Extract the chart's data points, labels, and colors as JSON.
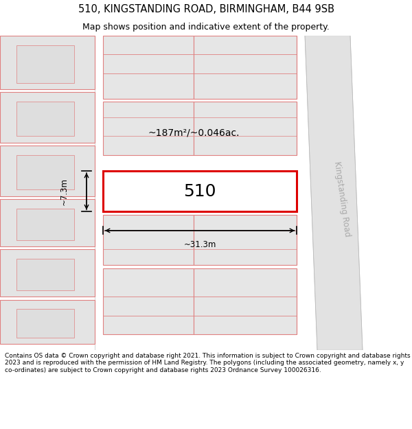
{
  "title": "510, KINGSTANDING ROAD, BIRMINGHAM, B44 9SB",
  "subtitle": "Map shows position and indicative extent of the property.",
  "footer": "Contains OS data © Crown copyright and database right 2021. This information is subject to Crown copyright and database rights 2023 and is reproduced with the permission of HM Land Registry. The polygons (including the associated geometry, namely x, y co-ordinates) are subject to Crown copyright and database rights 2023 Ordnance Survey 100026316.",
  "road_label": "Kingstanding Road",
  "area_label": "~187m²/~0.046ac.",
  "width_label": "~31.3m",
  "height_label": "~7.3m",
  "plot_number": "510",
  "bg_color": "#ffffff",
  "map_bg": "#f5f5f5",
  "road_fill": "#e2e2e2",
  "plot_fill": "#ffffff",
  "plot_edge_color": "#dd0000",
  "neighbor_fill": "#e4e4e4",
  "neighbor_edge": "#e08080",
  "neighbor_edge_width": 0.8,
  "plot_edge_width": 2.2,
  "title_fontsize": 10.5,
  "subtitle_fontsize": 9.0,
  "footer_fontsize": 6.5,
  "label_fontsize": 8.5,
  "road_label_fontsize": 8.5,
  "plot_number_fontsize": 18
}
